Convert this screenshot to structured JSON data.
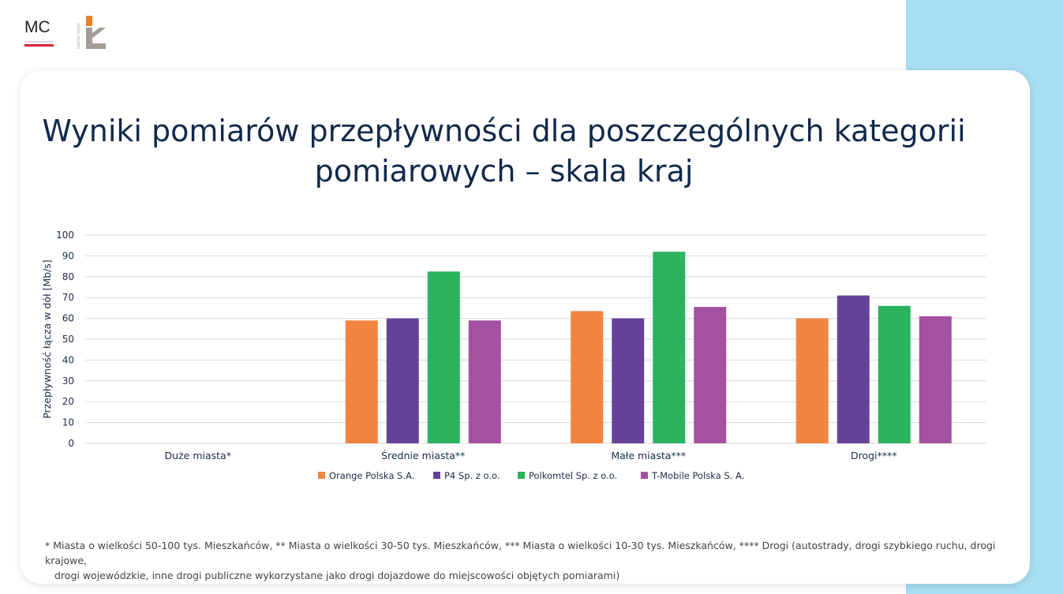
{
  "branding": {
    "mc_logo_text": "MC",
    "kl_logo_text": "kapitał ludzki",
    "accent_orange": "#f07f22",
    "accent_red": "#d6233a"
  },
  "page": {
    "title": "Wyniki pomiarów przepływności dla poszczególnych kategorii pomiarowych – skala kraj"
  },
  "chart_data": {
    "type": "bar",
    "title": "Wyniki pomiarów przepływności dla poszczególnych kategorii pomiarowych – skala kraj",
    "xlabel": "",
    "ylabel": "Przepływność łącza w dół [Mb/s]",
    "ylim": [
      0,
      100
    ],
    "yticks": [
      0,
      10,
      20,
      30,
      40,
      50,
      60,
      70,
      80,
      90,
      100
    ],
    "grid": true,
    "legend_position": "bottom",
    "categories": [
      "Duże miasta*",
      "Średnie miasta**",
      "Małe miasta***",
      "Drogi****"
    ],
    "series": [
      {
        "name": "Orange Polska S.A.",
        "color": "#f18540",
        "values": [
          null,
          59,
          63.5,
          60
        ]
      },
      {
        "name": "P4 Sp. z o.o.",
        "color": "#65429a",
        "values": [
          null,
          60,
          60,
          71
        ]
      },
      {
        "name": "Polkomtel Sp. z o.o.",
        "color": "#2bb35f",
        "values": [
          null,
          82.5,
          92,
          66
        ]
      },
      {
        "name": "T-Mobile Polska S. A.",
        "color": "#a451a1",
        "values": [
          null,
          59,
          65.5,
          61
        ]
      }
    ]
  },
  "footnote": {
    "line1": "* Miasta o wielkości 50-100 tys. Mieszkańców, ** Miasta o wielkości 30-50 tys. Mieszkańców, *** Miasta o wielkości 10-30 tys. Mieszkańców, **** Drogi (autostrady, drogi szybkiego ruchu, drogi krajowe,",
    "line2": "drogi wojewódzkie, inne drogi publiczne wykorzystane jako drogi dojazdowe do miejscowości objętych pomiarami)"
  }
}
